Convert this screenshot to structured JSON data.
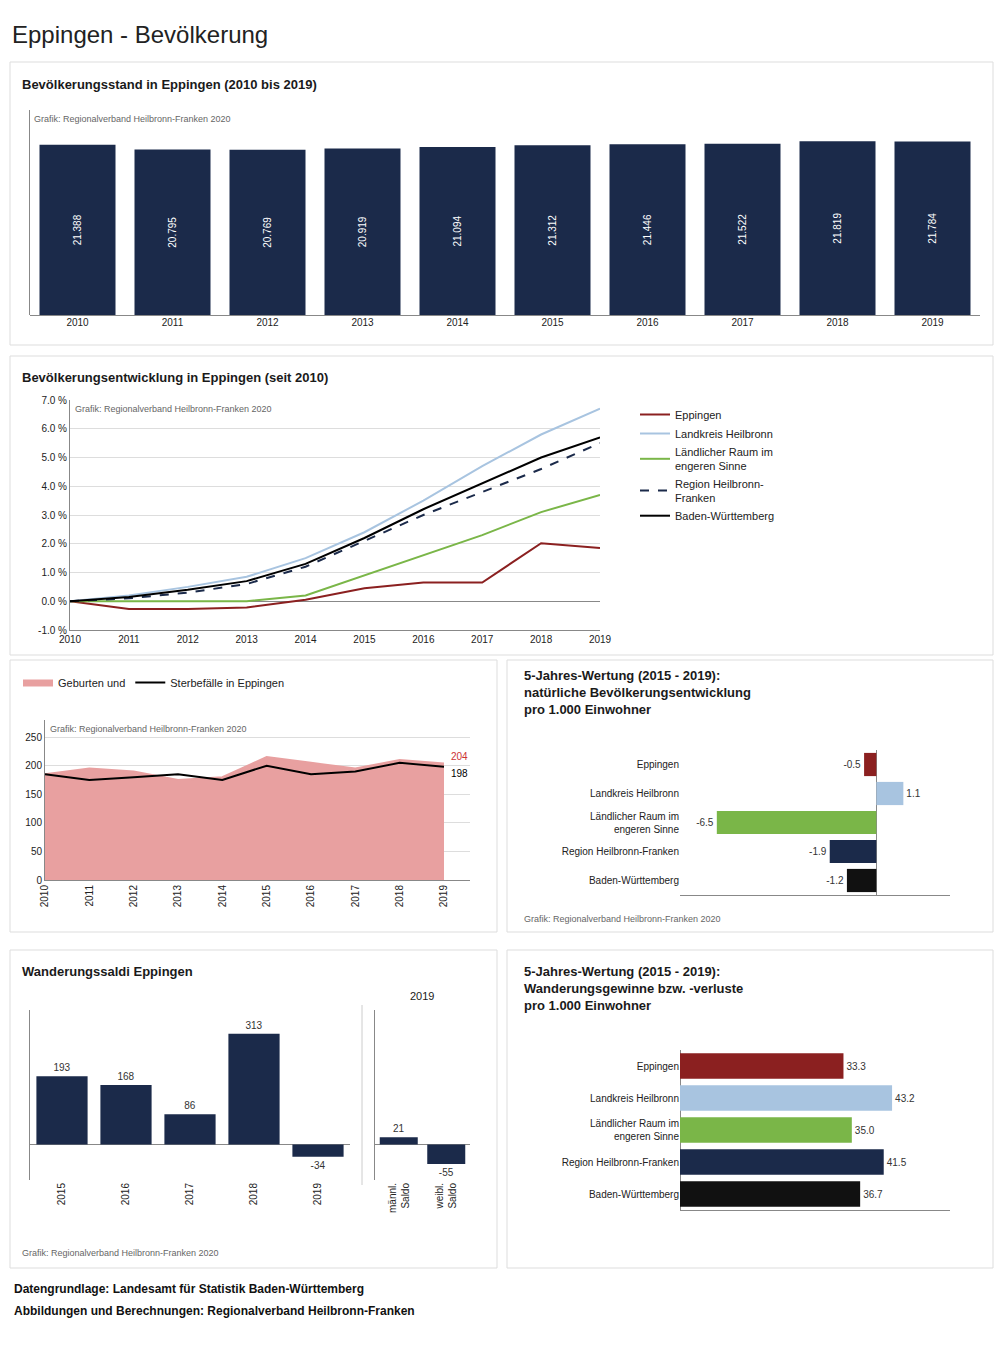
{
  "title": "Eppingen - Bevölkerung",
  "annotations": [
    "Datengrundlage: Landesamt für Statistik Baden-Württemberg",
    "Abbildungen und Berechnungen: Regionalverband Heilbronn-Franken"
  ],
  "chart_data": [
    {
      "type": "bar",
      "title": "Bevölkerungsstand in Eppingen (2010 bis 2019)",
      "categories": [
        "2010",
        "2011",
        "2012",
        "2013",
        "2014",
        "2015",
        "2016",
        "2017",
        "2018",
        "2019"
      ],
      "values": [
        21388,
        20795,
        20769,
        20919,
        21094,
        21312,
        21446,
        21522,
        21819,
        21784
      ],
      "value_labels": [
        "21.388",
        "20.795",
        "20.769",
        "20.919",
        "21.094",
        "21.312",
        "21.446",
        "21.522",
        "21.819",
        "21.784"
      ],
      "color": "#1B2A4A",
      "ylim": [
        0,
        25746.42
      ],
      "data_labels": true,
      "tick_labels": "x",
      "annotations": [
        "Grafik: Regionalverband Heilbronn-Franken 2020"
      ]
    },
    {
      "type": "line",
      "title": "Bevölkerungsentwicklung in Eppingen (seit 2010)",
      "x": [
        2010,
        2011,
        2012,
        2013,
        2014,
        2015,
        2016,
        2017,
        2018,
        2019
      ],
      "xlim": [
        2010,
        2019
      ],
      "xticks": [
        2010,
        2011,
        2012,
        2013,
        2014,
        2015,
        2016,
        2017,
        2018,
        2019
      ],
      "ylim": [
        -1.0,
        7.0
      ],
      "yticks": [
        {
          "value": -1.0,
          "label": "-1.0 %"
        },
        {
          "value": 0.0,
          "label": "0.0 %"
        },
        {
          "value": 1.0,
          "label": "1.0 %"
        },
        {
          "value": 2.0,
          "label": "2.0 %"
        },
        {
          "value": 3.0,
          "label": "3.0 %"
        },
        {
          "value": 4.0,
          "label": "4.0 %"
        },
        {
          "value": 5.0,
          "label": "5.0 %"
        },
        {
          "value": 6.0,
          "label": "6.0 %"
        },
        {
          "value": 7.0,
          "label": "7.0 %"
        }
      ],
      "grid": true,
      "legend": "right",
      "series": [
        {
          "name": "Eppingen",
          "color": "#8B2020",
          "line_style": "solid",
          "values": [
            0.0,
            -0.27,
            -0.27,
            -0.22,
            0.05,
            0.45,
            0.65,
            0.65,
            2.02,
            1.85
          ]
        },
        {
          "name": "Landkreis Heilbronn",
          "color": "#a8c4e0",
          "line_style": "solid",
          "values": [
            0.0,
            0.2,
            0.5,
            0.85,
            1.5,
            2.4,
            3.5,
            4.7,
            5.8,
            6.7
          ]
        },
        {
          "name": "Ländlicher Raum im\nengeren Sinne",
          "color": "#7ab648",
          "line_style": "solid",
          "values": [
            0.0,
            0.0,
            0.0,
            0.0,
            0.2,
            0.9,
            1.6,
            2.3,
            3.1,
            3.7
          ]
        },
        {
          "name": "Region Heilbronn-\nFranken",
          "color": "#1B2A4A",
          "line_style": "dashed",
          "values": [
            0.0,
            0.1,
            0.3,
            0.6,
            1.2,
            2.1,
            3.0,
            3.8,
            4.6,
            5.5
          ]
        },
        {
          "name": "Baden-Württemberg",
          "color": "#000000",
          "line_style": "solid",
          "values": [
            0.0,
            0.15,
            0.4,
            0.7,
            1.3,
            2.2,
            3.2,
            4.1,
            5.0,
            5.7
          ]
        }
      ],
      "annotations": [
        "Grafik: Regionalverband Heilbronn-Franken 2020"
      ]
    },
    {
      "type": "line",
      "categories": [
        "2010",
        "2011",
        "2012",
        "2013",
        "2014",
        "2015",
        "2016",
        "2017",
        "2018",
        "2019"
      ],
      "ylim": [
        0,
        280
      ],
      "yticks": [
        0,
        50,
        100,
        150,
        200,
        250
      ],
      "grid": true,
      "legend": "top",
      "series": [
        {
          "name": "Geburten und",
          "type": "area",
          "color": "#e8a0a0",
          "values": [
            185,
            195,
            190,
            175,
            180,
            215,
            205,
            195,
            210,
            204
          ]
        },
        {
          "name": "Sterbefälle in Eppingen",
          "type": "line",
          "color": "#000000",
          "values": [
            185,
            175,
            180,
            185,
            175,
            200,
            185,
            190,
            205,
            198
          ]
        }
      ],
      "annotations": [
        {
          "text": "198",
          "x": "2019",
          "y": 198,
          "color": "#000000"
        },
        {
          "text": "204",
          "x": "2019",
          "y": 204,
          "color": "#cc3333"
        },
        "Grafik: Regionalverband Heilbronn-Franken 2020"
      ]
    },
    {
      "type": "bar",
      "orientation": "horizontal",
      "title": "5-Jahres-Wertung (2015 - 2019):\nnatürliche Bevölkerungsentwicklung\npro 1.000 Einwohner",
      "categories": [
        "Eppingen",
        "Landkreis Heilbronn",
        "Ländlicher Raum im\nengeren Sinne",
        "Region Heilbronn-Franken",
        "Baden-Württemberg"
      ],
      "values": [
        -0.5,
        1.1,
        -6.5,
        -1.9,
        -1.2
      ],
      "colors": [
        "#8B2020",
        "#a8c4e0",
        "#7ab648",
        "#1B2A4A",
        "#111111"
      ],
      "xlim": [
        -8,
        3
      ],
      "data_labels": true,
      "tick_labels": "y",
      "annotations": [
        "Grafik: Regionalverband Heilbronn-Franken 2020"
      ]
    },
    {
      "type": "bar",
      "title": "Wanderungssaldi Eppingen",
      "categories": [
        "2015",
        "2016",
        "2017",
        "2018",
        "2019"
      ],
      "values": [
        193,
        168,
        86,
        313,
        -34
      ],
      "color": "#1B2A4A",
      "ylim": [
        -100,
        380
      ],
      "data_labels": true,
      "tick_labels": "x",
      "annotations": [
        "Grafik: Regionalverband Heilbronn-Franken 2020"
      ]
    },
    {
      "type": "bar",
      "title": "2019",
      "categories": [
        "männl.\nSaldo",
        "weibl.\nSaldo"
      ],
      "values": [
        21,
        -55
      ],
      "color": "#1B2A4A",
      "ylim": [
        -100,
        380
      ],
      "data_labels": true,
      "tick_labels": "x"
    },
    {
      "type": "bar",
      "orientation": "horizontal",
      "title": "5-Jahres-Wertung (2015 - 2019):\nWanderungsgewinne bzw. -verluste\npro 1.000 Einwohner",
      "categories": [
        "Eppingen",
        "Landkreis Heilbronn",
        "Ländlicher Raum im\nengeren Sinne",
        "Region Heilbronn-Franken",
        "Baden-Württemberg"
      ],
      "values": [
        33.3,
        43.2,
        35.0,
        41.5,
        36.7
      ],
      "value_labels": [
        "33.3",
        "43.2",
        "35.0",
        "41.5",
        "36.7"
      ],
      "colors": [
        "#8B2020",
        "#a8c4e0",
        "#7ab648",
        "#1B2A4A",
        "#111111"
      ],
      "xlim": [
        0,
        55
      ],
      "data_labels": true,
      "tick_labels": "y"
    }
  ]
}
